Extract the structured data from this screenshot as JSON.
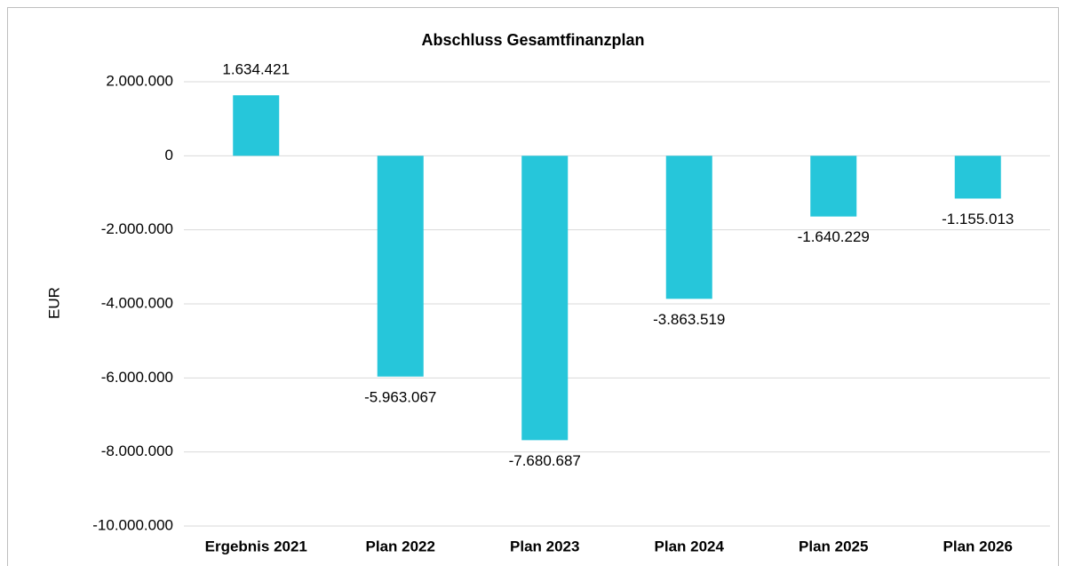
{
  "chart_data": {
    "type": "bar",
    "title": "Abschluss Gesamtfinanzplan",
    "y_label": "EUR",
    "categories": [
      "Ergebnis 2021",
      "Plan 2022",
      "Plan 2023",
      "Plan 2024",
      "Plan 2025",
      "Plan 2026"
    ],
    "values": [
      1634421,
      -5963067,
      -7680687,
      -3863519,
      -1640229,
      -1155013
    ],
    "value_labels": [
      "1.634.421",
      "-5.963.067",
      "-7.680.687",
      "-3.863.519",
      "-1.640.229",
      "-1.155.013"
    ],
    "color": "#26c6da",
    "ylim": [
      -10000000,
      2000000
    ],
    "yticks": [
      {
        "value": 2000000,
        "label": "2.000.000"
      },
      0,
      {
        "value": -2000000,
        "label": "-2.000.000"
      },
      {
        "value": -4000000,
        "label": "-4.000.000"
      },
      {
        "value": -6000000,
        "label": "-6.000.000"
      },
      {
        "value": -8000000,
        "label": "-8.000.000"
      },
      {
        "value": -10000000,
        "label": "-10.000.000"
      }
    ],
    "grid": true
  }
}
